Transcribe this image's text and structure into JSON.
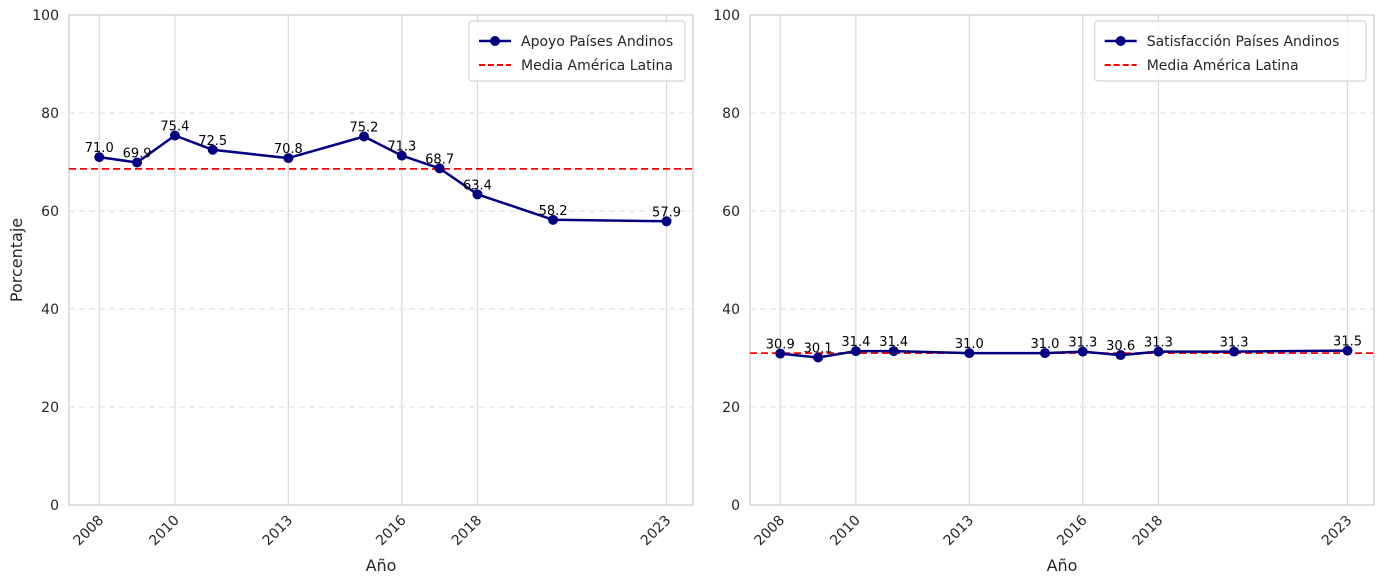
{
  "chart_data": [
    {
      "type": "line",
      "title": "",
      "xlabel": "Año",
      "ylabel": "Porcentaje",
      "ylim": [
        0,
        100
      ],
      "yticks": [
        0,
        20,
        40,
        60,
        80,
        100
      ],
      "xticks": [
        "2008",
        "2010",
        "2013",
        "2016",
        "2018",
        "2023"
      ],
      "xlim": [
        2007.2,
        2023.7
      ],
      "grid": true,
      "legend_position": "top-right",
      "series": [
        {
          "name": "Apoyo Países Andinos",
          "color": "#000080",
          "style": "line-marker",
          "x": [
            2008,
            2009,
            2010,
            2011,
            2013,
            2015,
            2016,
            2017,
            2018,
            2020,
            2023
          ],
          "values": [
            71.0,
            69.9,
            75.4,
            72.5,
            70.8,
            75.2,
            71.3,
            68.7,
            63.4,
            58.2,
            57.9
          ],
          "labels": [
            "71.0",
            "69.9",
            "75.4",
            "72.5",
            "70.8",
            "75.2",
            "71.3",
            "68.7",
            "63.4",
            "58.2",
            "57.9"
          ]
        }
      ],
      "reference_line": {
        "name": "Media América Latina",
        "value": 68.6,
        "color": "#ff0000",
        "style": "dashed"
      }
    },
    {
      "type": "line",
      "title": "",
      "xlabel": "Año",
      "ylabel": "",
      "ylim": [
        0,
        100
      ],
      "yticks": [
        0,
        20,
        40,
        60,
        80,
        100
      ],
      "xticks": [
        "2008",
        "2010",
        "2013",
        "2016",
        "2018",
        "2023"
      ],
      "xlim": [
        2007.2,
        2023.7
      ],
      "grid": true,
      "legend_position": "top-right",
      "series": [
        {
          "name": "Satisfacción Países Andinos",
          "color": "#000080",
          "style": "line-marker",
          "x": [
            2008,
            2009,
            2010,
            2011,
            2013,
            2015,
            2016,
            2017,
            2018,
            2020,
            2023
          ],
          "values": [
            30.9,
            30.1,
            31.4,
            31.4,
            31.0,
            31.0,
            31.3,
            30.6,
            31.3,
            31.3,
            31.5
          ],
          "labels": [
            "30.9",
            "30.1",
            "31.4",
            "31.4",
            "31.0",
            "31.0",
            "31.3",
            "30.6",
            "31.3",
            "31.3",
            "31.5"
          ]
        }
      ],
      "reference_line": {
        "name": "Media América Latina",
        "value": 31.0,
        "color": "#ff0000",
        "style": "dashed"
      }
    }
  ]
}
